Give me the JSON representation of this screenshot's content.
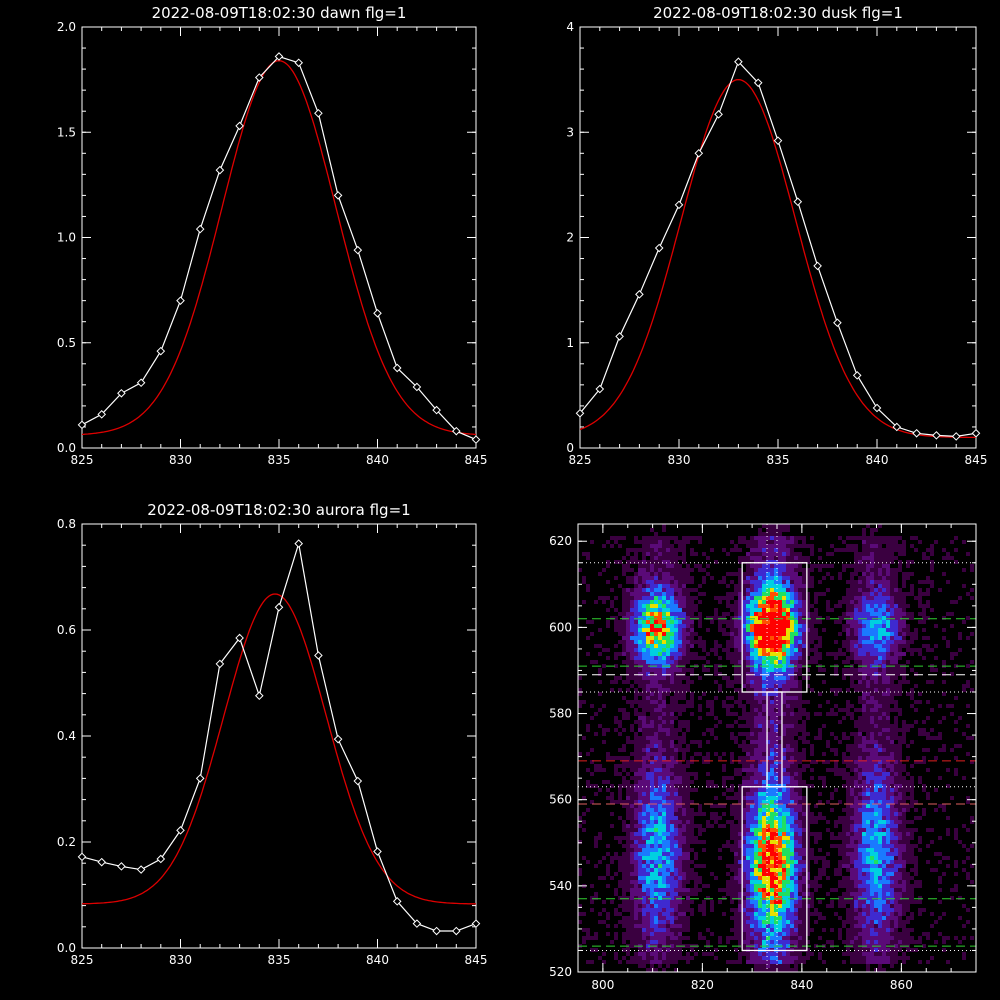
{
  "chart_data": [
    {
      "type": "line",
      "title": "2022-08-09T18:02:30 dawn flg=1",
      "xlim": [
        825,
        845
      ],
      "ylim": [
        0,
        2.0
      ],
      "xticks": [
        825,
        830,
        835,
        840,
        845
      ],
      "yticks": [
        0.0,
        0.5,
        1.0,
        1.5,
        2.0
      ],
      "xtick_labels": [
        "825",
        "830",
        "835",
        "840",
        "845"
      ],
      "ytick_labels": [
        "0.0",
        "0.5",
        "1.0",
        "1.5",
        "2.0"
      ],
      "series": [
        {
          "color": "#ffffff",
          "marker": "diamond",
          "x": [
            825,
            826,
            827,
            828,
            829,
            830,
            831,
            832,
            833,
            834,
            835,
            836,
            837,
            838,
            839,
            840,
            841,
            842,
            843,
            844,
            845
          ],
          "y": [
            0.11,
            0.16,
            0.26,
            0.31,
            0.46,
            0.7,
            1.04,
            1.32,
            1.53,
            1.76,
            1.86,
            1.83,
            1.59,
            1.2,
            0.94,
            0.64,
            0.38,
            0.29,
            0.18,
            0.08,
            0.04
          ]
        },
        {
          "color": "#dd0000",
          "fit": "gaussian",
          "center": 835.0,
          "sigma": 2.9,
          "amplitude": 1.78,
          "offset": 0.06
        }
      ]
    },
    {
      "type": "line",
      "title": "2022-08-09T18:02:30 dusk flg=1",
      "xlim": [
        825,
        845
      ],
      "ylim": [
        0,
        4
      ],
      "xticks": [
        825,
        830,
        835,
        840,
        845
      ],
      "yticks": [
        0,
        1,
        2,
        3,
        4
      ],
      "xtick_labels": [
        "825",
        "830",
        "835",
        "840",
        "845"
      ],
      "ytick_labels": [
        "0",
        "1",
        "2",
        "3",
        "4"
      ],
      "series": [
        {
          "color": "#ffffff",
          "marker": "diamond",
          "x": [
            825,
            826,
            827,
            828,
            829,
            830,
            831,
            832,
            833,
            834,
            835,
            836,
            837,
            838,
            839,
            840,
            841,
            842,
            843,
            844,
            845
          ],
          "y": [
            0.33,
            0.56,
            1.06,
            1.46,
            1.9,
            2.31,
            2.8,
            3.17,
            3.67,
            3.47,
            2.92,
            2.34,
            1.73,
            1.19,
            0.69,
            0.38,
            0.2,
            0.14,
            0.12,
            0.11,
            0.14
          ]
        },
        {
          "color": "#dd0000",
          "fit": "gaussian",
          "center": 833.0,
          "sigma": 2.9,
          "amplitude": 3.4,
          "offset": 0.1
        }
      ]
    },
    {
      "type": "line",
      "title": "2022-08-09T18:02:30 aurora flg=1",
      "xlim": [
        825,
        845
      ],
      "ylim": [
        0,
        0.8
      ],
      "xticks": [
        825,
        830,
        835,
        840,
        845
      ],
      "yticks": [
        0.0,
        0.2,
        0.4,
        0.6,
        0.8
      ],
      "xtick_labels": [
        "825",
        "830",
        "835",
        "840",
        "845"
      ],
      "ytick_labels": [
        "0.0",
        "0.2",
        "0.4",
        "0.6",
        "0.8"
      ],
      "series": [
        {
          "color": "#ffffff",
          "marker": "diamond",
          "x": [
            825,
            826,
            827,
            828,
            829,
            830,
            831,
            832,
            833,
            834,
            835,
            836,
            837,
            838,
            839,
            840,
            841,
            842,
            843,
            844,
            845
          ],
          "y": [
            0.172,
            0.162,
            0.154,
            0.148,
            0.168,
            0.222,
            0.32,
            0.536,
            0.585,
            0.476,
            0.643,
            0.763,
            0.552,
            0.394,
            0.315,
            0.182,
            0.088,
            0.046,
            0.032,
            0.032,
            0.046
          ]
        },
        {
          "color": "#dd0000",
          "fit": "gaussian",
          "center": 834.8,
          "sigma": 2.6,
          "amplitude": 0.585,
          "offset": 0.083
        }
      ]
    },
    {
      "type": "heatmap",
      "xlim": [
        795,
        875
      ],
      "ylim": [
        520,
        624
      ],
      "xticks": [
        800,
        820,
        840,
        860
      ],
      "yticks": [
        520,
        540,
        560,
        580,
        600,
        620
      ],
      "xtick_labels": [
        "800",
        "820",
        "840",
        "860"
      ],
      "ytick_labels": [
        "520",
        "540",
        "560",
        "580",
        "600",
        "620"
      ],
      "colormap": [
        "#000000",
        "#3a0040",
        "#5a0a78",
        "#3e2ad0",
        "#1a7aff",
        "#00d0e0",
        "#20e060",
        "#e8e000",
        "#ff5000",
        "#ff0000"
      ],
      "emission_bands": [
        {
          "x_center": 811,
          "x_width": 5,
          "y_from": 520,
          "y_to": 620
        },
        {
          "x_center": 834,
          "x_width": 5,
          "y_from": 520,
          "y_to": 620
        },
        {
          "x_center": 855,
          "x_width": 5,
          "y_from": 520,
          "y_to": 620
        }
      ],
      "boxes": [
        {
          "x0": 828,
          "x1": 841,
          "y0": 585,
          "y1": 615
        },
        {
          "x0": 833,
          "x1": 836,
          "y0": 563,
          "y1": 585
        },
        {
          "x0": 828,
          "x1": 841,
          "y0": 525,
          "y1": 563
        }
      ],
      "hlines": [
        {
          "y": 615,
          "color": "#ffffff",
          "style": "dotted"
        },
        {
          "y": 602,
          "color": "#30d030",
          "style": "dashed"
        },
        {
          "y": 591,
          "color": "#30d030",
          "style": "dashed"
        },
        {
          "y": 589,
          "color": "#ffffff",
          "style": "dashed"
        },
        {
          "y": 585,
          "color": "#ffffff",
          "style": "dotted"
        },
        {
          "y": 569,
          "color": "#e02020",
          "style": "dashed"
        },
        {
          "y": 563,
          "color": "#ffffff",
          "style": "dotted"
        },
        {
          "y": 559,
          "color": "#e06060",
          "style": "dashed"
        },
        {
          "y": 537,
          "color": "#30d030",
          "style": "dashed"
        },
        {
          "y": 526,
          "color": "#30d030",
          "style": "dashed"
        },
        {
          "y": 525,
          "color": "#ffffff",
          "style": "dotted"
        }
      ],
      "vlines": [
        {
          "x": 833,
          "color": "#ffffff",
          "style": "dotted"
        },
        {
          "x": 835,
          "color": "#ffffff",
          "style": "dotted"
        }
      ]
    }
  ]
}
